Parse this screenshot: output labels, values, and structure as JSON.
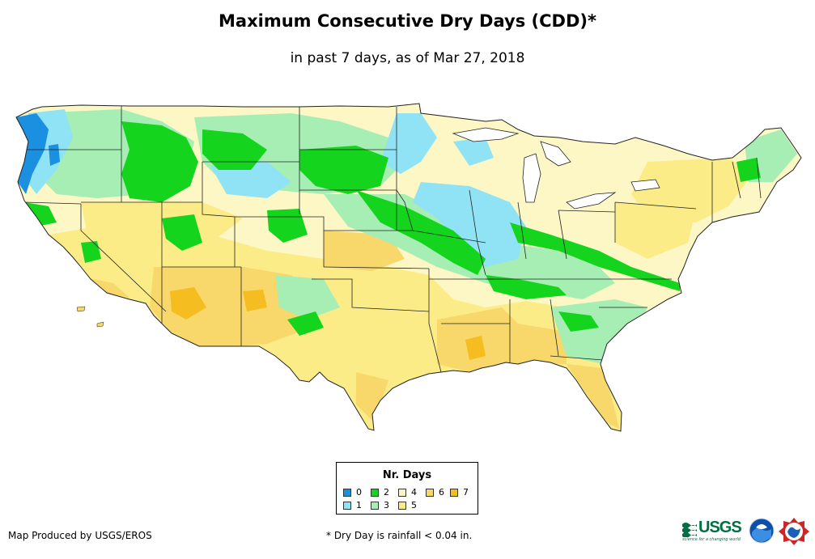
{
  "title": "Maximum Consecutive Dry Days (CDD)*",
  "subtitle": "in past 7 days, as of Mar 27, 2018",
  "legend": {
    "title": "Nr. Days",
    "items": [
      {
        "label": "0",
        "color": "#1b8fe0"
      },
      {
        "label": "1",
        "color": "#8fe3f5"
      },
      {
        "label": "2",
        "color": "#14d41e"
      },
      {
        "label": "3",
        "color": "#a6eeb4"
      },
      {
        "label": "4",
        "color": "#fcf7c5"
      },
      {
        "label": "5",
        "color": "#fbec88"
      },
      {
        "label": "6",
        "color": "#f8d86a"
      },
      {
        "label": "7",
        "color": "#f5bd1f"
      }
    ]
  },
  "credit": "Map Produced by USGS/EROS",
  "footnote": "* Dry Day is rainfall < 0.04 in.",
  "logos": {
    "usgs": {
      "text": "USGS",
      "tagline": "science for a changing world",
      "color": "#006f41"
    },
    "noaa": {
      "text": "NOAA",
      "color": "#0b4fa8"
    },
    "nws": {
      "text": "NWS",
      "color": "#d02525"
    }
  }
}
